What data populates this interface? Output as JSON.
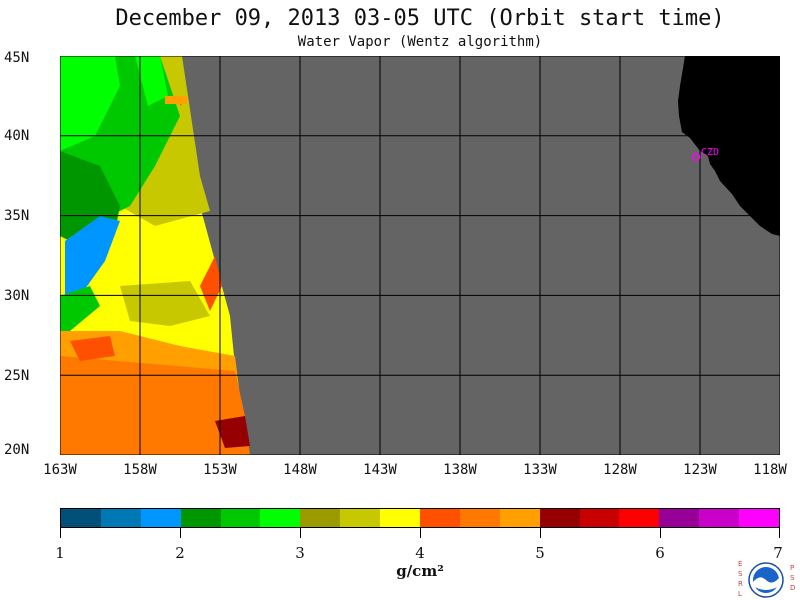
{
  "title": "December 09, 2013  03-05 UTC  (Orbit start time)",
  "subtitle": "Water Vapor (Wentz algorithm)",
  "map": {
    "y_labels": [
      "45N",
      "40N",
      "35N",
      "30N",
      "25N",
      "20N"
    ],
    "x_labels": [
      "163W",
      "158W",
      "153W",
      "148W",
      "143W",
      "138W",
      "133W",
      "128W",
      "123W",
      "118W"
    ],
    "station_label": "CZD",
    "colors": {
      "no_data": "#646464",
      "land": "#000000",
      "grid": "#000000",
      "station": "#ff00ff"
    }
  },
  "colorbar": {
    "colors": [
      "#00507a",
      "#0078b4",
      "#0096ff",
      "#009600",
      "#00c800",
      "#00ff00",
      "#9b9b00",
      "#c8c800",
      "#ffff00",
      "#ff5000",
      "#ff7800",
      "#ffa000",
      "#960000",
      "#c80000",
      "#ff0000",
      "#960096",
      "#c800c8",
      "#ff00ff"
    ],
    "ticks": [
      "1",
      "2",
      "3",
      "4",
      "5",
      "6",
      "7"
    ],
    "units": "g/cm²"
  },
  "logo": {
    "left_text": "ESRL",
    "right_text": "PSD",
    "name": "noaa-logo"
  }
}
